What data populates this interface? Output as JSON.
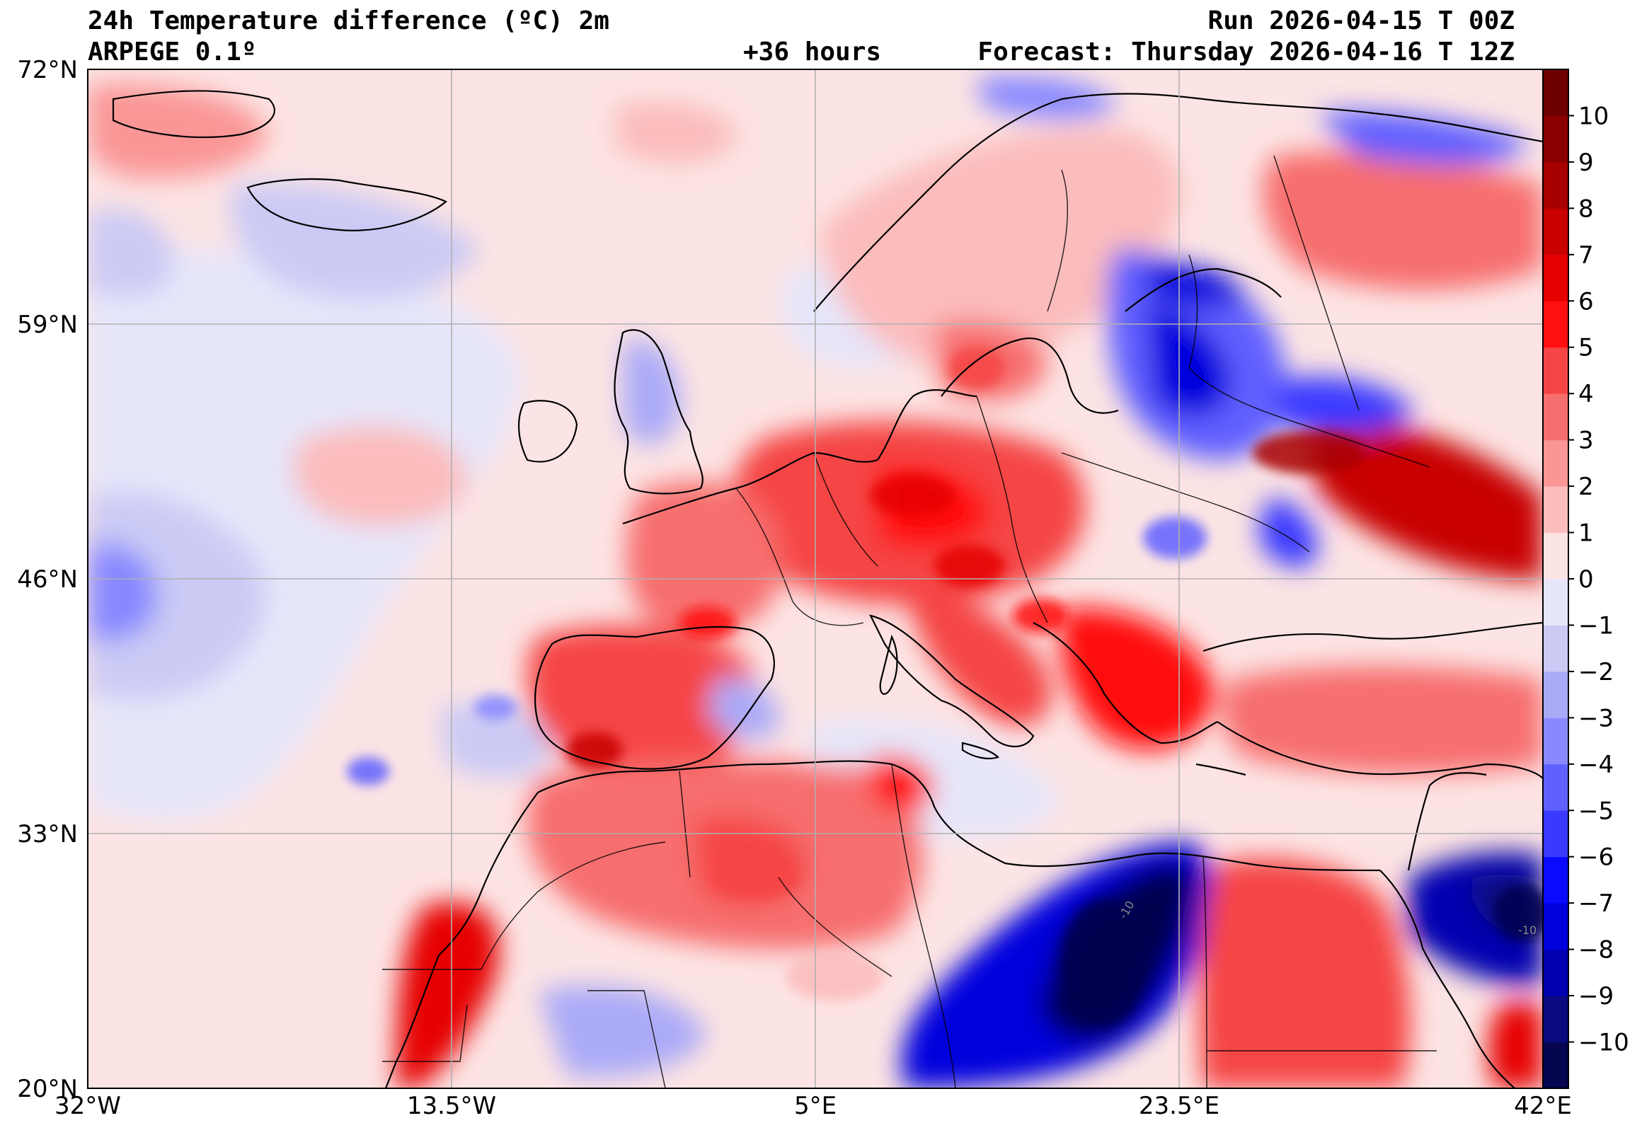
{
  "header": {
    "title_left": "24h Temperature difference (ºC) 2m",
    "model": "ARPEGE 0.1º",
    "lead_time": "+36 hours",
    "run": "Run 2026-04-15 T 00Z",
    "forecast": "Forecast: Thursday 2026-04-16 T 12Z"
  },
  "map": {
    "lon_range": [
      -32,
      42
    ],
    "lat_range": [
      20,
      72
    ],
    "lon_ticks": [
      {
        "value": -32,
        "label": "32°W"
      },
      {
        "value": -13.5,
        "label": "13.5°W"
      },
      {
        "value": 5,
        "label": "5°E"
      },
      {
        "value": 23.5,
        "label": "23.5°E"
      },
      {
        "value": 42,
        "label": "42°E"
      }
    ],
    "lat_ticks": [
      {
        "value": 72,
        "label": "72°N"
      },
      {
        "value": 59,
        "label": "59°N"
      },
      {
        "value": 46,
        "label": "46°N"
      },
      {
        "value": 33,
        "label": "33°N"
      },
      {
        "value": 20,
        "label": "20°N"
      }
    ],
    "contour_labels": [
      "-10",
      "-10"
    ]
  },
  "colorbar": {
    "levels": [
      "-11",
      "-10",
      "-9",
      "-8",
      "-7",
      "-6",
      "-5",
      "-4",
      "-3",
      "-2",
      "-1",
      "0",
      "1",
      "2",
      "3",
      "4",
      "5",
      "6",
      "7",
      "8",
      "9",
      "10",
      "11"
    ],
    "tick_labels": [
      "−10",
      "−9",
      "−8",
      "−7",
      "−6",
      "−5",
      "−4",
      "−3",
      "−2",
      "−1",
      "0",
      "1",
      "2",
      "3",
      "4",
      "5",
      "6",
      "7",
      "8",
      "9",
      "10"
    ],
    "colors": [
      "#050550",
      "#0a0a80",
      "#0000b0",
      "#0000dd",
      "#0a0aff",
      "#3a3aff",
      "#6060ff",
      "#8888ff",
      "#aaaaf8",
      "#cacaf5",
      "#e6e6fa",
      "#fde4e4",
      "#fbbcbc",
      "#fa9696",
      "#f76e6e",
      "#f54545",
      "#ff0f0f",
      "#e60000",
      "#c80000",
      "#a80000",
      "#8a0000",
      "#6e0000"
    ]
  }
}
